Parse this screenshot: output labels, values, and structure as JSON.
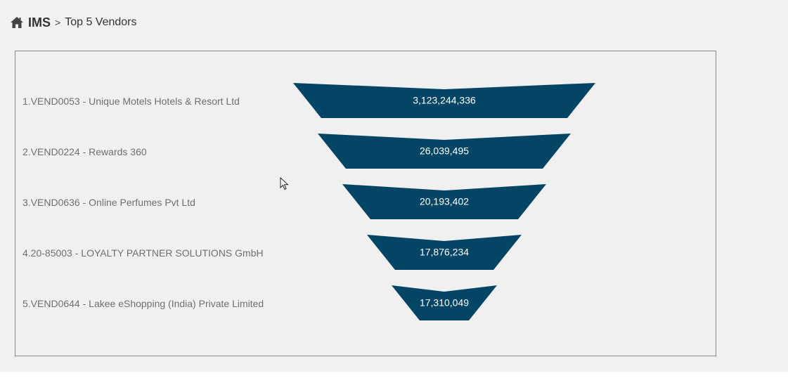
{
  "breadcrumb": {
    "home_icon": "home-icon",
    "app": "IMS",
    "separator": ">",
    "page": "Top 5 Vendors"
  },
  "colors": {
    "funnel": "#044565",
    "label_text": "#6f6f6f",
    "value_text": "#ffffff"
  },
  "chart_data": {
    "type": "funnel",
    "categories": [
      "1.VEND0053 - Unique Motels Hotels & Resort Ltd",
      "2.VEND0224 - Rewards 360",
      "3.VEND0636 - Online Perfumes Pvt Ltd",
      "4.20-85003 - LOYALTY PARTNER SOLUTIONS GmbH",
      "5.VEND0644 - Lakee eShopping (India) Private Limited"
    ],
    "values": [
      3123244336,
      26039495,
      20193402,
      17876234,
      17310049
    ],
    "value_labels": [
      "3,123,244,336",
      "26,039,495",
      "20,193,402",
      "17,876,234",
      "17,310,049"
    ]
  }
}
